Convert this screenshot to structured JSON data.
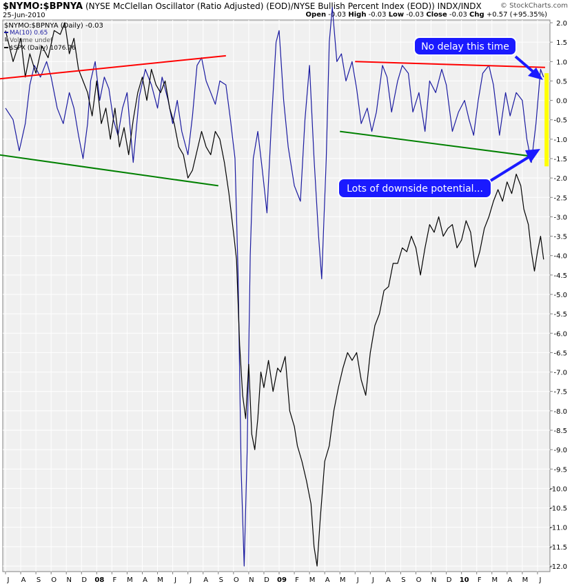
{
  "header": {
    "symbol": "$NYMO:$BPNYA",
    "description": "(NYSE McClellan Oscillator (Ratio Adjusted) (EOD)/NYSE Bullish Percent Index (EOD))",
    "exchange": "INDX/INDX",
    "brand": "© StockCharts.com",
    "date": "25-Jun-2010",
    "open_label": "Open",
    "open": "-0.03",
    "high_label": "High",
    "high": "-0.03",
    "low_label": "Low",
    "low": "-0.03",
    "close_label": "Close",
    "close": "-0.03",
    "chg_label": "Chg",
    "chg": "+0.57 (+95.35%)"
  },
  "legend": {
    "line1": "$NYMO:$BPNYA (Daily) -0.03",
    "line2": "MA(10) 0.65",
    "line3": "Volume undef",
    "line4": "$SPX (Daily) 1076.76"
  },
  "annotations": {
    "callout_top": "No delay this time",
    "callout_bottom": "Lots of downside potential..."
  },
  "colors": {
    "oscillator": "#1a1aa0",
    "spx": "#000000",
    "red_line": "#ff0000",
    "green_line": "#008000",
    "highlight": "#ffff00",
    "callout_bg": "#1a1aff",
    "background": "#f0f0f0"
  },
  "chart_data": {
    "type": "line",
    "ylim": [
      -12.0,
      2.0
    ],
    "y_ticks": [
      "2.0",
      "1.5",
      "1.0",
      "0.5",
      "0.0",
      "-0.5",
      "-1.0",
      "-1.5",
      "-2.0",
      "-2.5",
      "-3.0",
      "-3.5",
      "-4.0",
      "-4.5",
      "-5.0",
      "-5.5",
      "-6.0",
      "-6.5",
      "-7.0",
      "-7.5",
      "-8.0",
      "-8.5",
      "-9.0",
      "-9.5",
      "-10.0",
      "-10.5",
      "-11.0",
      "-11.5",
      "-12.0"
    ],
    "x_labels": [
      "J",
      "A",
      "S",
      "O",
      "N",
      "D",
      "08",
      "F",
      "M",
      "A",
      "M",
      "J",
      "J",
      "A",
      "S",
      "O",
      "N",
      "D",
      "09",
      "F",
      "M",
      "A",
      "M",
      "J",
      "J",
      "A",
      "S",
      "O",
      "N",
      "D",
      "10",
      "F",
      "M",
      "A",
      "M",
      "J"
    ],
    "x_label_months": [
      0,
      1,
      2,
      3,
      4,
      5,
      6,
      7,
      8,
      9,
      10,
      11,
      12,
      13,
      14,
      15,
      16,
      17,
      18,
      19,
      20,
      21,
      22,
      23,
      24,
      25,
      26,
      27,
      28,
      29,
      30,
      31,
      32,
      33,
      34,
      35
    ],
    "series": [
      {
        "name": "MA(10)",
        "points": [
          [
            0.0,
            -0.2
          ],
          [
            0.5,
            -0.5
          ],
          [
            0.9,
            -1.3
          ],
          [
            1.3,
            -0.6
          ],
          [
            1.6,
            0.4
          ],
          [
            1.9,
            0.9
          ],
          [
            2.3,
            0.6
          ],
          [
            2.7,
            1.0
          ],
          [
            3.0,
            0.6
          ],
          [
            3.4,
            -0.2
          ],
          [
            3.8,
            -0.6
          ],
          [
            4.2,
            0.2
          ],
          [
            4.5,
            -0.2
          ],
          [
            4.8,
            -0.9
          ],
          [
            5.1,
            -1.5
          ],
          [
            5.4,
            -0.6
          ],
          [
            5.6,
            0.5
          ],
          [
            5.9,
            1.0
          ],
          [
            6.2,
            0.0
          ],
          [
            6.5,
            0.6
          ],
          [
            6.8,
            0.3
          ],
          [
            7.1,
            -0.5
          ],
          [
            7.4,
            -0.9
          ],
          [
            7.7,
            -0.2
          ],
          [
            8.0,
            0.2
          ],
          [
            8.4,
            -1.6
          ],
          [
            8.8,
            0.1
          ],
          [
            9.2,
            0.8
          ],
          [
            9.6,
            0.4
          ],
          [
            10.0,
            -0.2
          ],
          [
            10.3,
            0.6
          ],
          [
            10.7,
            0.0
          ],
          [
            11.0,
            -0.6
          ],
          [
            11.3,
            0.0
          ],
          [
            11.6,
            -0.8
          ],
          [
            12.0,
            -1.4
          ],
          [
            12.3,
            -0.4
          ],
          [
            12.6,
            0.9
          ],
          [
            12.9,
            1.1
          ],
          [
            13.2,
            0.5
          ],
          [
            13.5,
            0.2
          ],
          [
            13.8,
            -0.1
          ],
          [
            14.1,
            0.5
          ],
          [
            14.5,
            0.4
          ],
          [
            14.8,
            -0.5
          ],
          [
            15.1,
            -1.5
          ],
          [
            15.3,
            -4.5
          ],
          [
            15.5,
            -9.5
          ],
          [
            15.7,
            -12.0
          ],
          [
            15.9,
            -9.0
          ],
          [
            16.1,
            -4.0
          ],
          [
            16.3,
            -1.5
          ],
          [
            16.6,
            -0.8
          ],
          [
            16.9,
            -1.8
          ],
          [
            17.2,
            -2.9
          ],
          [
            17.5,
            -0.5
          ],
          [
            17.8,
            1.5
          ],
          [
            18.0,
            1.8
          ],
          [
            18.3,
            0.0
          ],
          [
            18.6,
            -1.2
          ],
          [
            19.0,
            -2.2
          ],
          [
            19.4,
            -2.6
          ],
          [
            19.7,
            -0.5
          ],
          [
            20.0,
            0.9
          ],
          [
            20.3,
            -1.5
          ],
          [
            20.6,
            -3.5
          ],
          [
            20.8,
            -4.6
          ],
          [
            21.1,
            -1.5
          ],
          [
            21.3,
            1.5
          ],
          [
            21.5,
            2.4
          ],
          [
            21.8,
            1.0
          ],
          [
            22.1,
            1.2
          ],
          [
            22.4,
            0.5
          ],
          [
            22.8,
            1.0
          ],
          [
            23.1,
            0.3
          ],
          [
            23.4,
            -0.6
          ],
          [
            23.8,
            -0.2
          ],
          [
            24.1,
            -0.8
          ],
          [
            24.4,
            -0.3
          ],
          [
            24.8,
            0.9
          ],
          [
            25.1,
            0.6
          ],
          [
            25.4,
            -0.3
          ],
          [
            25.8,
            0.5
          ],
          [
            26.1,
            0.9
          ],
          [
            26.5,
            0.7
          ],
          [
            26.8,
            -0.3
          ],
          [
            27.2,
            0.2
          ],
          [
            27.6,
            -0.8
          ],
          [
            27.9,
            0.5
          ],
          [
            28.3,
            0.2
          ],
          [
            28.7,
            0.8
          ],
          [
            29.0,
            0.4
          ],
          [
            29.4,
            -0.8
          ],
          [
            29.8,
            -0.3
          ],
          [
            30.2,
            0.0
          ],
          [
            30.5,
            -0.5
          ],
          [
            30.8,
            -0.9
          ],
          [
            31.1,
            0.0
          ],
          [
            31.4,
            0.7
          ],
          [
            31.8,
            0.9
          ],
          [
            32.1,
            0.4
          ],
          [
            32.5,
            -0.9
          ],
          [
            32.9,
            0.2
          ],
          [
            33.2,
            -0.4
          ],
          [
            33.6,
            0.2
          ],
          [
            34.0,
            0.0
          ],
          [
            34.3,
            -1.0
          ],
          [
            34.6,
            -1.6
          ],
          [
            34.9,
            -0.6
          ],
          [
            35.2,
            0.8
          ],
          [
            35.4,
            0.6
          ]
        ]
      },
      {
        "name": "$SPX",
        "points": [
          [
            0.0,
            1.8
          ],
          [
            0.5,
            1.0
          ],
          [
            1.0,
            1.6
          ],
          [
            1.3,
            0.6
          ],
          [
            1.6,
            1.2
          ],
          [
            2.0,
            0.7
          ],
          [
            2.4,
            1.4
          ],
          [
            2.8,
            1.1
          ],
          [
            3.2,
            1.8
          ],
          [
            3.6,
            1.7
          ],
          [
            3.9,
            2.0
          ],
          [
            4.2,
            1.2
          ],
          [
            4.5,
            1.6
          ],
          [
            4.8,
            0.8
          ],
          [
            5.1,
            0.5
          ],
          [
            5.4,
            0.2
          ],
          [
            5.7,
            -0.4
          ],
          [
            6.0,
            0.5
          ],
          [
            6.3,
            -0.6
          ],
          [
            6.6,
            -0.2
          ],
          [
            6.9,
            -1.0
          ],
          [
            7.2,
            -0.2
          ],
          [
            7.5,
            -1.2
          ],
          [
            7.8,
            -0.7
          ],
          [
            8.1,
            -1.4
          ],
          [
            8.4,
            -0.5
          ],
          [
            8.7,
            0.2
          ],
          [
            9.0,
            0.6
          ],
          [
            9.3,
            0.0
          ],
          [
            9.6,
            0.8
          ],
          [
            9.9,
            0.4
          ],
          [
            10.2,
            0.2
          ],
          [
            10.5,
            0.5
          ],
          [
            10.8,
            -0.2
          ],
          [
            11.1,
            -0.6
          ],
          [
            11.4,
            -1.2
          ],
          [
            11.7,
            -1.4
          ],
          [
            12.0,
            -2.0
          ],
          [
            12.3,
            -1.8
          ],
          [
            12.6,
            -1.3
          ],
          [
            12.9,
            -0.8
          ],
          [
            13.2,
            -1.2
          ],
          [
            13.5,
            -1.4
          ],
          [
            13.8,
            -0.8
          ],
          [
            14.1,
            -1.0
          ],
          [
            14.4,
            -1.6
          ],
          [
            14.7,
            -2.4
          ],
          [
            15.0,
            -3.4
          ],
          [
            15.2,
            -4.1
          ],
          [
            15.4,
            -6.3
          ],
          [
            15.6,
            -7.6
          ],
          [
            15.8,
            -8.2
          ],
          [
            16.0,
            -6.8
          ],
          [
            16.2,
            -8.6
          ],
          [
            16.4,
            -9.0
          ],
          [
            16.6,
            -8.2
          ],
          [
            16.8,
            -7.0
          ],
          [
            17.0,
            -7.4
          ],
          [
            17.3,
            -6.7
          ],
          [
            17.6,
            -7.5
          ],
          [
            17.9,
            -6.9
          ],
          [
            18.1,
            -7.0
          ],
          [
            18.4,
            -6.6
          ],
          [
            18.7,
            -8.0
          ],
          [
            19.0,
            -8.4
          ],
          [
            19.2,
            -8.9
          ],
          [
            19.5,
            -9.3
          ],
          [
            19.8,
            -9.8
          ],
          [
            20.1,
            -10.4
          ],
          [
            20.3,
            -11.5
          ],
          [
            20.5,
            -12.0
          ],
          [
            20.7,
            -10.8
          ],
          [
            21.0,
            -9.3
          ],
          [
            21.3,
            -8.9
          ],
          [
            21.6,
            -8.0
          ],
          [
            21.9,
            -7.4
          ],
          [
            22.2,
            -6.9
          ],
          [
            22.5,
            -6.5
          ],
          [
            22.8,
            -6.7
          ],
          [
            23.1,
            -6.5
          ],
          [
            23.4,
            -7.2
          ],
          [
            23.7,
            -7.6
          ],
          [
            24.0,
            -6.5
          ],
          [
            24.3,
            -5.8
          ],
          [
            24.6,
            -5.5
          ],
          [
            24.9,
            -4.9
          ],
          [
            25.2,
            -4.8
          ],
          [
            25.5,
            -4.2
          ],
          [
            25.8,
            -4.2
          ],
          [
            26.1,
            -3.8
          ],
          [
            26.4,
            -3.9
          ],
          [
            26.7,
            -3.5
          ],
          [
            27.0,
            -3.8
          ],
          [
            27.3,
            -4.5
          ],
          [
            27.6,
            -3.8
          ],
          [
            27.9,
            -3.2
          ],
          [
            28.2,
            -3.4
          ],
          [
            28.5,
            -3.0
          ],
          [
            28.8,
            -3.5
          ],
          [
            29.1,
            -3.3
          ],
          [
            29.4,
            -3.2
          ],
          [
            29.7,
            -3.8
          ],
          [
            30.0,
            -3.6
          ],
          [
            30.3,
            -3.1
          ],
          [
            30.6,
            -3.4
          ],
          [
            30.9,
            -4.3
          ],
          [
            31.2,
            -3.9
          ],
          [
            31.5,
            -3.3
          ],
          [
            31.8,
            -3.0
          ],
          [
            32.1,
            -2.6
          ],
          [
            32.4,
            -2.3
          ],
          [
            32.7,
            -2.6
          ],
          [
            33.0,
            -2.1
          ],
          [
            33.3,
            -2.4
          ],
          [
            33.6,
            -1.9
          ],
          [
            33.9,
            -2.2
          ],
          [
            34.1,
            -2.8
          ],
          [
            34.4,
            -3.2
          ],
          [
            34.6,
            -3.9
          ],
          [
            34.8,
            -4.4
          ],
          [
            35.0,
            -3.9
          ],
          [
            35.2,
            -3.5
          ],
          [
            35.4,
            -4.1
          ]
        ]
      }
    ],
    "trendlines": [
      {
        "color": "red",
        "from": [
          -0.5,
          0.55
        ],
        "to": [
          14.5,
          1.15
        ]
      },
      {
        "color": "green",
        "from": [
          -0.5,
          -1.4
        ],
        "to": [
          14.0,
          -2.2
        ]
      },
      {
        "color": "red",
        "from": [
          23.0,
          1.0
        ],
        "to": [
          35.5,
          0.85
        ]
      },
      {
        "color": "green",
        "from": [
          22.0,
          -0.8
        ],
        "to": [
          34.8,
          -1.45
        ]
      }
    ],
    "highlight_range": [
      -1.7,
      0.7
    ],
    "highlight_x": 35.6
  }
}
